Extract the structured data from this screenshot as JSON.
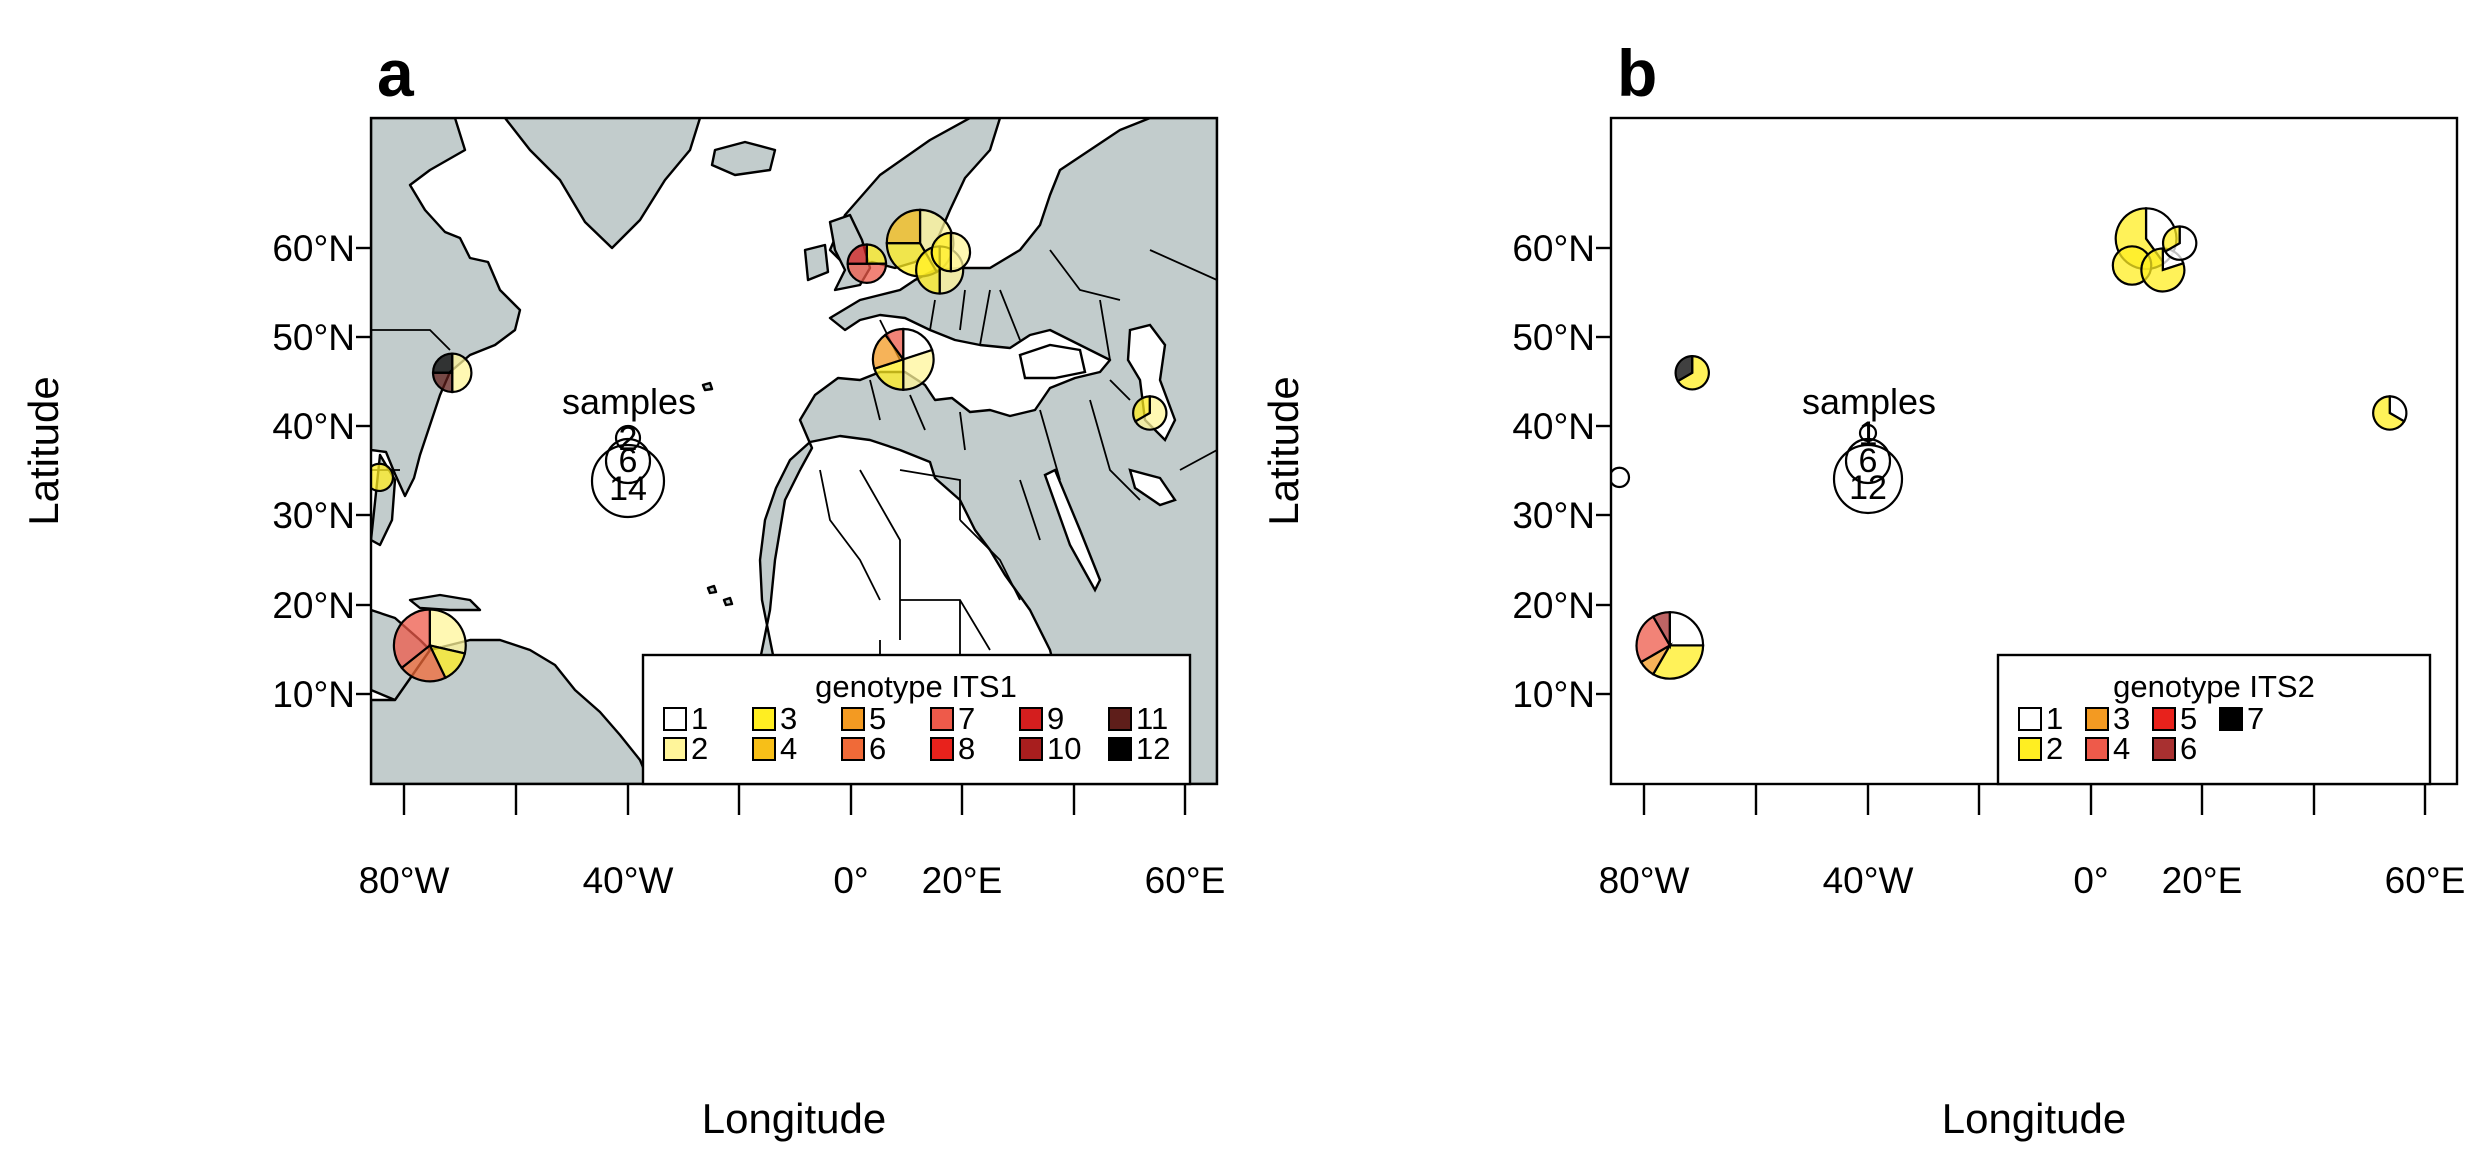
{
  "panels": [
    {
      "letter": "a",
      "title": "genotype ITS1",
      "samples_label": "samples",
      "sample_sizes": [
        "2",
        "6",
        "14"
      ],
      "legend": [
        {
          "label": "1",
          "color": "#ffffff"
        },
        {
          "label": "2",
          "color": "#fff59a"
        },
        {
          "label": "3",
          "color": "#ffee22"
        },
        {
          "label": "4",
          "color": "#f7bf18"
        },
        {
          "label": "5",
          "color": "#f39a22"
        },
        {
          "label": "6",
          "color": "#f06a38"
        },
        {
          "label": "7",
          "color": "#ee5a4a"
        },
        {
          "label": "8",
          "color": "#e8221c"
        },
        {
          "label": "9",
          "color": "#d41e1e"
        },
        {
          "label": "10",
          "color": "#a81e1e"
        },
        {
          "label": "11",
          "color": "#5e1e1a"
        },
        {
          "label": "12",
          "color": "#000000"
        }
      ],
      "sites": [
        {
          "lat": 60.5,
          "lon": 12.0,
          "n": 12,
          "counts": {
            "2": 5,
            "3": 4,
            "4": 3
          }
        },
        {
          "lat": 58.2,
          "lon": 2.5,
          "n": 4,
          "counts": {
            "7": 2,
            "9": 1,
            "3": 1
          }
        },
        {
          "lat": 57.5,
          "lon": 15.5,
          "n": 6,
          "counts": {
            "2": 3,
            "3": 3
          }
        },
        {
          "lat": 59.5,
          "lon": 17.5,
          "n": 4,
          "counts": {
            "2": 2,
            "3": 2
          }
        },
        {
          "lat": 47.5,
          "lon": 9.0,
          "n": 10,
          "counts": {
            "1": 2,
            "2": 3,
            "3": 2,
            "5": 2,
            "7": 1
          }
        },
        {
          "lat": 46.0,
          "lon": -71.5,
          "n": 4,
          "counts": {
            "2": 2,
            "11": 1,
            "12": 1
          }
        },
        {
          "lat": 41.5,
          "lon": 53.0,
          "n": 3,
          "counts": {
            "2": 2,
            "3": 1
          }
        },
        {
          "lat": 34.3,
          "lon": -84.5,
          "n": 2,
          "counts": {
            "3": 2
          }
        },
        {
          "lat": 15.5,
          "lon": -75.5,
          "n": 14,
          "counts": {
            "2": 4,
            "3": 2,
            "6": 3,
            "7": 5
          }
        }
      ]
    },
    {
      "letter": "b",
      "title": "genotype ITS2",
      "samples_label": "samples",
      "sample_sizes": [
        "1",
        "6",
        "12"
      ],
      "legend": [
        {
          "label": "1",
          "color": "#ffffff"
        },
        {
          "label": "2",
          "color": "#ffee22"
        },
        {
          "label": "3",
          "color": "#f39a22"
        },
        {
          "label": "4",
          "color": "#ee5a4a"
        },
        {
          "label": "5",
          "color": "#e8221c"
        },
        {
          "label": "6",
          "color": "#a83030"
        },
        {
          "label": "7",
          "color": "#000000"
        }
      ],
      "sites": [
        {
          "lat": 61.0,
          "lon": 9.5,
          "n": 10,
          "counts": {
            "1": 4,
            "2": 6
          }
        },
        {
          "lat": 58.0,
          "lon": 7.0,
          "n": 4,
          "counts": {
            "2": 4
          }
        },
        {
          "lat": 57.5,
          "lon": 12.5,
          "n": 5,
          "counts": {
            "1": 1,
            "2": 4
          }
        },
        {
          "lat": 60.5,
          "lon": 15.5,
          "n": 3,
          "counts": {
            "1": 2,
            "2": 1
          }
        },
        {
          "lat": 46.0,
          "lon": -71.5,
          "n": 3,
          "counts": {
            "2": 2,
            "7": 1
          }
        },
        {
          "lat": 41.5,
          "lon": 53.0,
          "n": 3,
          "counts": {
            "1": 1,
            "2": 2
          }
        },
        {
          "lat": 34.3,
          "lon": -84.5,
          "n": 1,
          "counts": {
            "1": 1
          }
        },
        {
          "lat": 15.5,
          "lon": -75.5,
          "n": 12,
          "counts": {
            "1": 3,
            "2": 4,
            "3": 1,
            "4": 3,
            "6": 1
          }
        }
      ]
    }
  ],
  "x_axis": {
    "label": "Longitude",
    "ticks": [
      "80°W",
      "40°W",
      "0°",
      "20°E",
      "60°E"
    ],
    "range": [
      -86,
      65
    ]
  },
  "y_axis": {
    "label": "Latitude",
    "ticks": [
      "60°N",
      "50°N",
      "40°N",
      "30°N",
      "20°N",
      "10°N"
    ],
    "range": [
      0,
      74.5
    ]
  },
  "land_color": "#c2cccc",
  "sea_color": "#ffffff"
}
